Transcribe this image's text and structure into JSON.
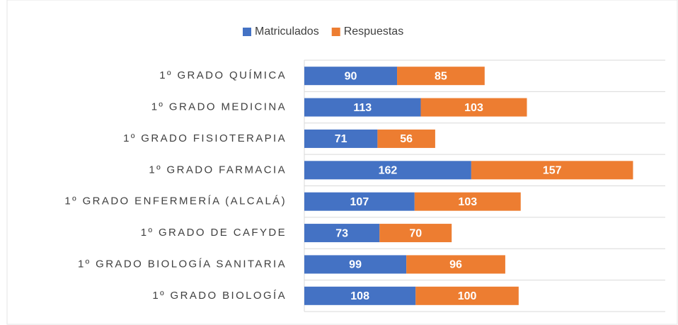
{
  "chart_data": {
    "type": "stacked-barh",
    "categories": [
      "1º GRADO QUÍMICA",
      "1º GRADO MEDICINA",
      "1º GRADO FISIOTERAPIA",
      "1º GRADO FARMACIA",
      "1º GRADO ENFERMERÍA (ALCALÁ)",
      "1º GRADO DE CAFYDE",
      "1º GRADO BIOLOGÍA SANITARIA",
      "1º GRADO BIOLOGÍA"
    ],
    "series": [
      {
        "name": "Matriculados",
        "color": "#4472c4",
        "values": [
          90,
          113,
          71,
          162,
          107,
          73,
          99,
          108
        ]
      },
      {
        "name": "Respuestas",
        "color": "#ed7d31",
        "values": [
          85,
          103,
          56,
          157,
          103,
          70,
          96,
          100
        ]
      }
    ],
    "legend": "top",
    "grid": true
  }
}
